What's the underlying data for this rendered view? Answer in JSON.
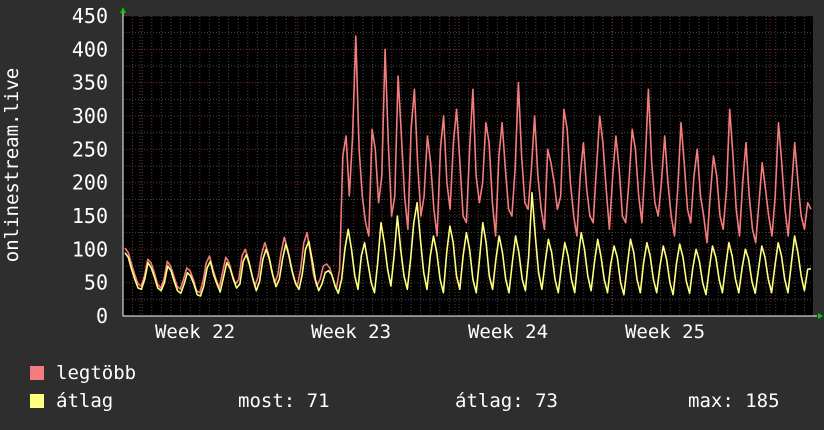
{
  "chart_data": {
    "type": "line",
    "ylabel": "onlinestream.live",
    "ylim": [
      0,
      450
    ],
    "yticks": [
      0,
      50,
      100,
      150,
      200,
      250,
      300,
      350,
      400,
      450
    ],
    "xticks": [
      "Week 22",
      "Week 23",
      "Week 24",
      "Week 25"
    ],
    "grid": true,
    "colors": {
      "background": "#2e2e2e",
      "plot": "#000000",
      "grid": "#4a4a4a",
      "major_grid": "#7a2a2a",
      "legtobb": "#f47c7c",
      "atlag": "#ffff80",
      "arrow": "#00cc00"
    },
    "series": [
      {
        "name": "legtöbb",
        "color": "#f47c7c",
        "values": [
          102,
          95,
          78,
          62,
          48,
          45,
          60,
          85,
          80,
          65,
          48,
          42,
          55,
          82,
          75,
          60,
          45,
          40,
          55,
          72,
          68,
          55,
          38,
          35,
          52,
          80,
          90,
          70,
          55,
          42,
          65,
          88,
          80,
          62,
          48,
          55,
          90,
          100,
          85,
          62,
          45,
          60,
          92,
          110,
          95,
          70,
          50,
          62,
          95,
          118,
          100,
          75,
          55,
          45,
          70,
          110,
          125,
          95,
          62,
          45,
          55,
          75,
          78,
          72,
          55,
          40,
          70,
          240,
          270,
          180,
          270,
          420,
          250,
          180,
          140,
          120,
          280,
          250,
          170,
          210,
          400,
          260,
          150,
          180,
          360,
          270,
          180,
          130,
          280,
          340,
          230,
          150,
          180,
          270,
          230,
          160,
          120,
          250,
          300,
          200,
          160,
          260,
          310,
          230,
          150,
          140,
          250,
          340,
          210,
          170,
          200,
          290,
          260,
          170,
          120,
          240,
          290,
          220,
          160,
          150,
          220,
          350,
          240,
          170,
          160,
          220,
          300,
          210,
          160,
          130,
          250,
          230,
          200,
          160,
          180,
          310,
          280,
          200,
          150,
          120,
          210,
          260,
          190,
          150,
          140,
          220,
          300,
          260,
          190,
          130,
          210,
          270,
          220,
          150,
          140,
          200,
          280,
          250,
          180,
          140,
          230,
          340,
          230,
          170,
          150,
          200,
          270,
          200,
          150,
          120,
          190,
          290,
          230,
          160,
          140,
          210,
          250,
          180,
          150,
          110,
          180,
          240,
          210,
          150,
          130,
          190,
          310,
          240,
          160,
          120,
          200,
          260,
          180,
          130,
          110,
          170,
          230,
          190,
          150,
          120,
          180,
          290,
          230,
          160,
          120,
          190,
          260,
          200,
          150,
          130,
          170,
          160
        ]
      },
      {
        "name": "átlag",
        "color": "#ffff80",
        "values": [
          95,
          88,
          70,
          55,
          42,
          40,
          55,
          80,
          72,
          58,
          42,
          38,
          50,
          75,
          68,
          52,
          38,
          34,
          48,
          65,
          60,
          48,
          32,
          30,
          45,
          72,
          82,
          62,
          48,
          36,
          58,
          80,
          72,
          55,
          42,
          48,
          82,
          92,
          76,
          55,
          38,
          52,
          85,
          100,
          86,
          62,
          44,
          55,
          86,
          108,
          90,
          66,
          48,
          40,
          62,
          100,
          112,
          85,
          55,
          38,
          48,
          65,
          68,
          62,
          45,
          34,
          55,
          100,
          130,
          100,
          60,
          40,
          90,
          110,
          80,
          50,
          35,
          80,
          140,
          110,
          70,
          45,
          90,
          150,
          100,
          60,
          40,
          85,
          140,
          170,
          115,
          65,
          40,
          90,
          120,
          95,
          55,
          35,
          95,
          135,
          110,
          60,
          40,
          90,
          125,
          100,
          55,
          35,
          85,
          140,
          110,
          60,
          40,
          85,
          120,
          95,
          55,
          35,
          80,
          120,
          95,
          55,
          38,
          90,
          185,
          120,
          65,
          40,
          80,
          115,
          95,
          55,
          35,
          75,
          110,
          90,
          55,
          35,
          85,
          125,
          100,
          60,
          38,
          80,
          115,
          90,
          55,
          35,
          78,
          105,
          88,
          50,
          32,
          75,
          115,
          95,
          55,
          35,
          80,
          110,
          90,
          55,
          35,
          75,
          105,
          85,
          50,
          32,
          78,
          108,
          88,
          52,
          34,
          72,
          100,
          82,
          50,
          32,
          70,
          105,
          88,
          55,
          35,
          75,
          110,
          90,
          55,
          35,
          72,
          100,
          85,
          52,
          34,
          70,
          105,
          88,
          55,
          35,
          75,
          110,
          90,
          55,
          35,
          78,
          120,
          95,
          60,
          38,
          70,
          71
        ]
      }
    ]
  },
  "legend": {
    "items": [
      {
        "label": "legtöbb",
        "color": "#f47c7c"
      },
      {
        "label": "átlag",
        "color": "#ffff80"
      }
    ],
    "stats": {
      "most": "most: 71",
      "atlag": "átlag: 73",
      "max": "max: 185"
    }
  }
}
